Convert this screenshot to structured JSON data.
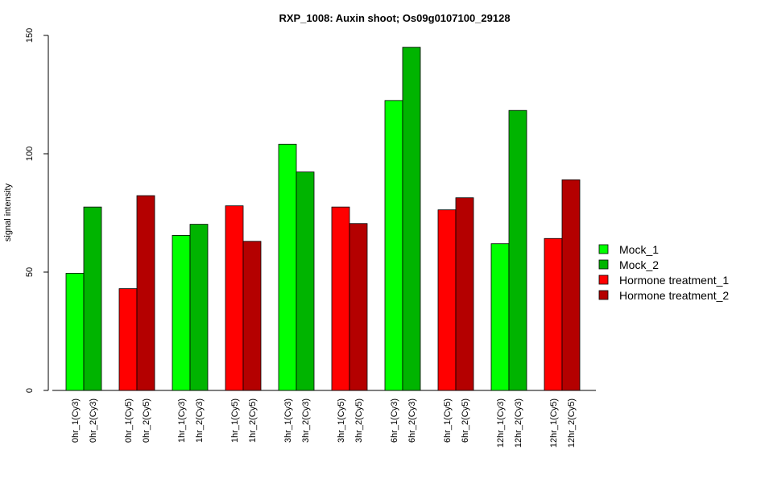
{
  "chart_data": {
    "type": "bar",
    "title": "RXP_1008: Auxin shoot; Os09g0107100_29128",
    "ylabel": "signal intensity",
    "xlabel": "",
    "ylim": [
      0,
      150
    ],
    "yticks": [
      "0",
      "50",
      "100",
      "150"
    ],
    "grid": false,
    "legend_position": "right",
    "legend": [
      {
        "name": "Mock_1",
        "color": "#00ff00"
      },
      {
        "name": "Mock_2",
        "color": "#00b400"
      },
      {
        "name": "Hormone treatment_1",
        "color": "#ff0000"
      },
      {
        "name": "Hormone treatment_2",
        "color": "#b40000"
      }
    ],
    "bars": [
      {
        "label": "0hr_1(Cy3)",
        "value": 49.5,
        "series": "Mock_1"
      },
      {
        "label": "0hr_2(Cy3)",
        "value": 77.5,
        "series": "Mock_2"
      },
      {
        "label": "0hr_1(Cy5)",
        "value": 43,
        "series": "Hormone treatment_1"
      },
      {
        "label": "0hr_2(Cy5)",
        "value": 82.3,
        "series": "Hormone treatment_2"
      },
      {
        "label": "1hr_1(Cy3)",
        "value": 65.5,
        "series": "Mock_1"
      },
      {
        "label": "1hr_2(Cy3)",
        "value": 70.2,
        "series": "Mock_2"
      },
      {
        "label": "1hr_1(Cy5)",
        "value": 78,
        "series": "Hormone treatment_1"
      },
      {
        "label": "1hr_2(Cy5)",
        "value": 63,
        "series": "Hormone treatment_2"
      },
      {
        "label": "3hr_1(Cy3)",
        "value": 104,
        "series": "Mock_1"
      },
      {
        "label": "3hr_2(Cy3)",
        "value": 92.3,
        "series": "Mock_2"
      },
      {
        "label": "3hr_1(Cy5)",
        "value": 77.5,
        "series": "Hormone treatment_1"
      },
      {
        "label": "3hr_2(Cy5)",
        "value": 70.5,
        "series": "Hormone treatment_2"
      },
      {
        "label": "6hr_1(Cy3)",
        "value": 122.5,
        "series": "Mock_1"
      },
      {
        "label": "6hr_2(Cy3)",
        "value": 145,
        "series": "Mock_2"
      },
      {
        "label": "6hr_1(Cy5)",
        "value": 76.3,
        "series": "Hormone treatment_1"
      },
      {
        "label": "6hr_2(Cy5)",
        "value": 81.4,
        "series": "Hormone treatment_2"
      },
      {
        "label": "12hr_1(Cy3)",
        "value": 62,
        "series": "Mock_1"
      },
      {
        "label": "12hr_2(Cy3)",
        "value": 118.3,
        "series": "Mock_2"
      },
      {
        "label": "12hr_1(Cy5)",
        "value": 64.2,
        "series": "Hormone treatment_1"
      },
      {
        "label": "12hr_2(Cy5)",
        "value": 89,
        "series": "Hormone treatment_2"
      }
    ]
  }
}
